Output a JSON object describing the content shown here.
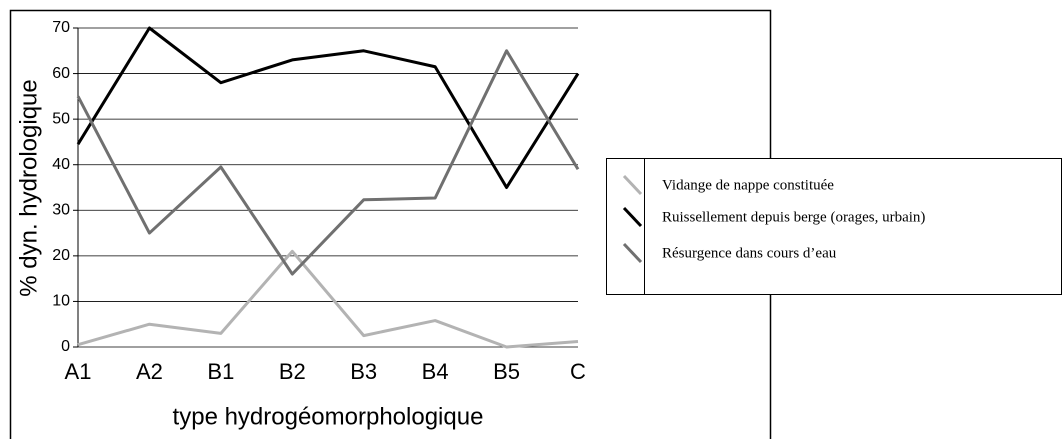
{
  "chart_data": {
    "type": "line",
    "xlabel": "type hydrogéomorphologique",
    "ylabel": "% dyn.  hydrologique",
    "categories": [
      "A1",
      "A2",
      "B1",
      "B2",
      "B3",
      "B4",
      "B5",
      "C"
    ],
    "series": [
      {
        "name": "Vidange de nappe constituée",
        "color": "#b3b3b3",
        "values": [
          0.5,
          5,
          3,
          21,
          2.5,
          5.8,
          0,
          1.2
        ]
      },
      {
        "name": "Ruissellement depuis berge (orages, urbain)",
        "color": "#000000",
        "values": [
          44.5,
          70,
          58,
          63,
          65,
          61.5,
          35,
          60
        ]
      },
      {
        "name": "Résurgence dans cours d’eau",
        "color": "#707070",
        "values": [
          55,
          25,
          39.5,
          16,
          32.3,
          32.7,
          65,
          39
        ]
      }
    ],
    "ylim": [
      0,
      70
    ],
    "yticks": [
      0,
      10,
      20,
      30,
      40,
      50,
      60,
      70
    ],
    "grid": true,
    "legend": "right"
  }
}
